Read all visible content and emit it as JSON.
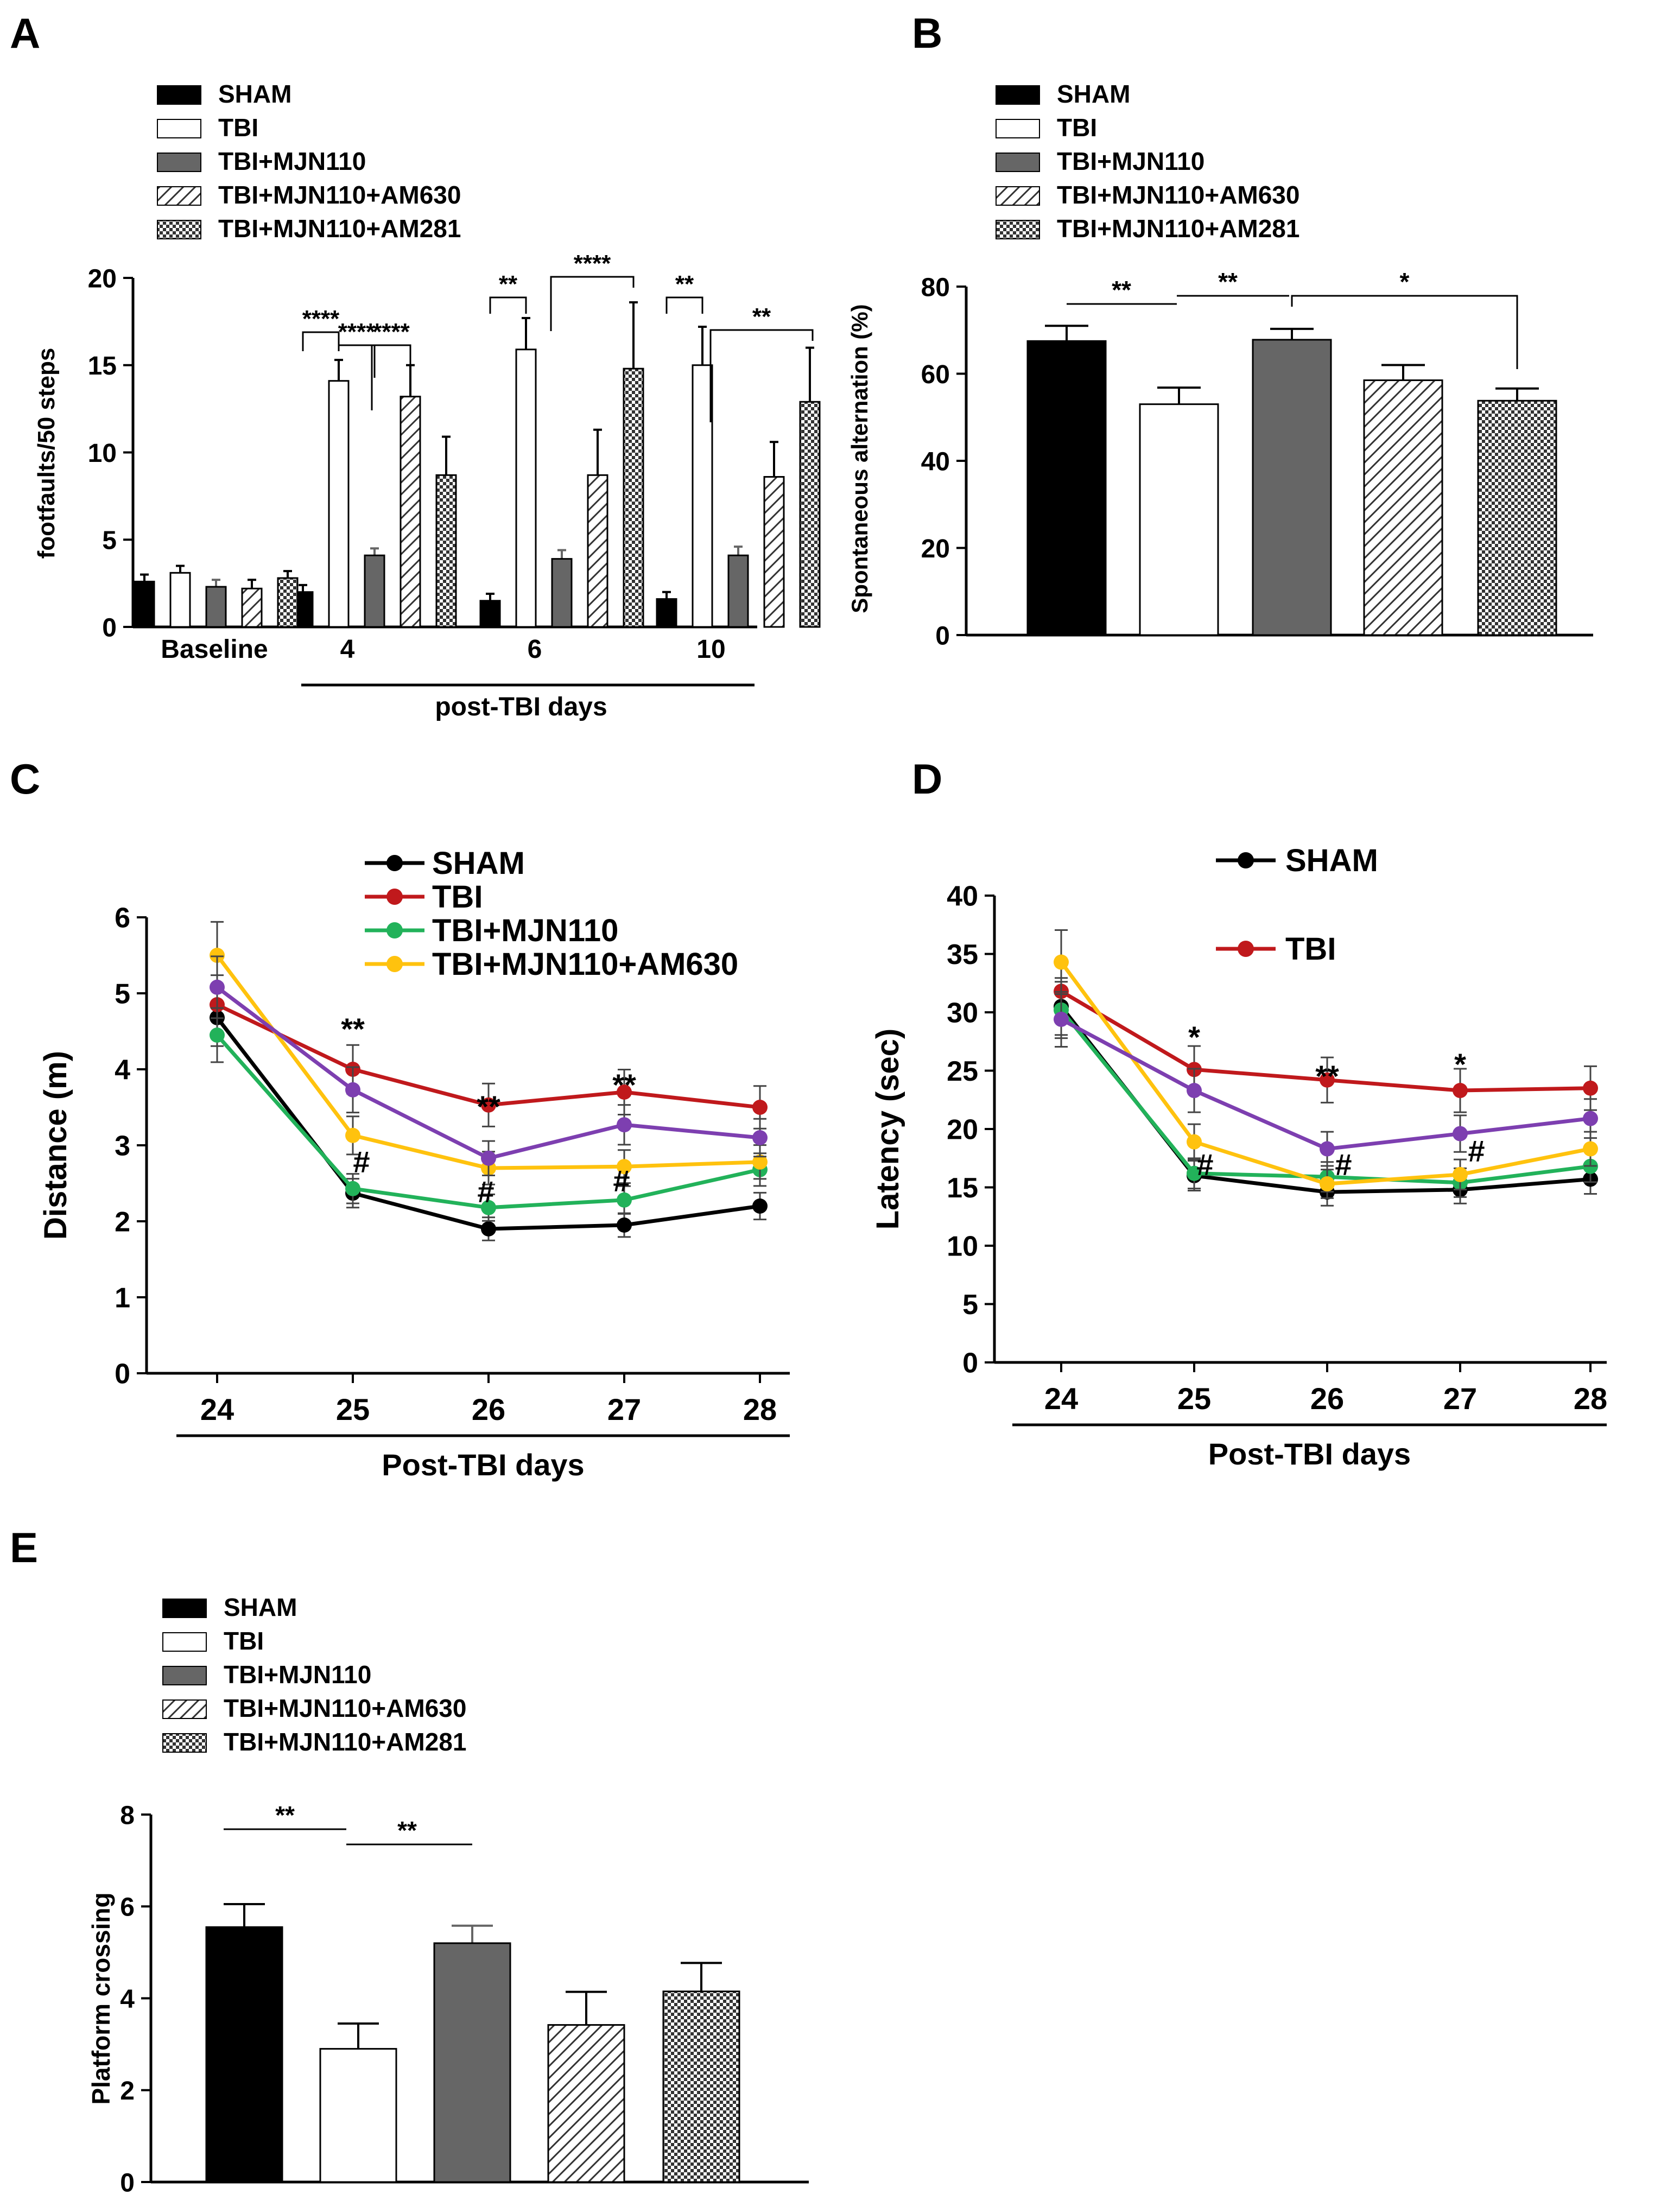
{
  "colors": {
    "sham": "#000000",
    "tbi": "#ffffff",
    "mjn": "#666666",
    "line_sham": "#000000",
    "line_tbi": "#c0191c",
    "line_mjn": "#22b25a",
    "line_am630": "#ffc20e",
    "line_purple": "#7d3fb0"
  },
  "chart_data": [
    {
      "panel": "A",
      "type": "bar",
      "title": "",
      "xlabel": "post-TBI days",
      "ylabel": "footfaults/50 steps",
      "ylim": [
        0,
        20
      ],
      "yticks": [
        "0",
        "5",
        "10",
        "15",
        "20"
      ],
      "categories": [
        "Baseline",
        "4",
        "6",
        "10"
      ],
      "legend": [
        "SHAM",
        "TBI",
        "TBI+MJN110",
        "TBI+MJN110+AM630",
        "TBI+MJN110+AM281"
      ],
      "series": [
        {
          "name": "SHAM",
          "values": [
            2.6,
            2.0,
            1.5,
            1.6
          ],
          "errors": [
            0.4,
            0.4,
            0.4,
            0.4
          ]
        },
        {
          "name": "TBI",
          "values": [
            3.1,
            14.1,
            15.9,
            15.0
          ],
          "errors": [
            0.4,
            1.2,
            1.8,
            2.2
          ]
        },
        {
          "name": "TBI+MJN110",
          "values": [
            2.3,
            4.1,
            3.9,
            4.1
          ],
          "errors": [
            0.4,
            0.4,
            0.5,
            0.5
          ]
        },
        {
          "name": "TBI+MJN110+AM630",
          "values": [
            2.2,
            13.2,
            8.7,
            8.6
          ],
          "errors": [
            0.5,
            1.8,
            2.6,
            2.0
          ]
        },
        {
          "name": "TBI+MJN110+AM281",
          "values": [
            2.8,
            8.7,
            14.8,
            12.9
          ],
          "errors": [
            0.4,
            2.2,
            3.8,
            3.1
          ]
        }
      ],
      "annotations": [
        "****",
        "****",
        "****",
        "**",
        "****",
        "**"
      ]
    },
    {
      "panel": "B",
      "type": "bar",
      "title": "",
      "xlabel": "",
      "ylabel": "Spontaneous alternation (%)",
      "ylim": [
        0,
        80
      ],
      "yticks": [
        "0",
        "20",
        "40",
        "60",
        "80"
      ],
      "categories": [
        "SHAM",
        "TBI",
        "TBI+MJN110",
        "TBI+MJN110+AM630",
        "TBI+MJN110+AM281"
      ],
      "legend": [
        "SHAM",
        "TBI",
        "TBI+MJN110",
        "TBI+MJN110+AM630",
        "TBI+MJN110+AM281"
      ],
      "values": [
        67.5,
        53.0,
        67.8,
        58.5,
        53.8
      ],
      "errors": [
        3.5,
        3.8,
        2.5,
        3.5,
        2.8
      ],
      "annotations": [
        "**",
        "**",
        "*"
      ]
    },
    {
      "panel": "C",
      "type": "line",
      "title": "",
      "xlabel": "Post-TBI days",
      "ylabel": "Distance (m)",
      "ylim": [
        0,
        6
      ],
      "yticks": [
        "0",
        "1",
        "2",
        "3",
        "4",
        "5",
        "6"
      ],
      "x": [
        "24",
        "25",
        "26",
        "27",
        "28"
      ],
      "legend": [
        "SHAM",
        "TBI",
        "TBI+MJN110",
        "TBI+MJN110+AM630"
      ],
      "series": [
        {
          "name": "SHAM",
          "values": [
            4.68,
            2.37,
            1.9,
            1.95,
            2.2
          ]
        },
        {
          "name": "TBI",
          "values": [
            4.85,
            4.0,
            3.53,
            3.7,
            3.5
          ]
        },
        {
          "name": "TBI+MJN110",
          "values": [
            4.45,
            2.43,
            2.18,
            2.28,
            2.68
          ]
        },
        {
          "name": "TBI+MJN110+AM630",
          "values": [
            5.5,
            3.13,
            2.7,
            2.72,
            2.78
          ]
        },
        {
          "name": "",
          "values": [
            5.08,
            3.73,
            2.83,
            3.27,
            3.1
          ]
        }
      ],
      "annotations": [
        "**",
        "**",
        "**",
        "#",
        "#",
        "#"
      ]
    },
    {
      "panel": "D",
      "type": "line",
      "title": "",
      "xlabel": "Post-TBI days",
      "ylabel": "Latency (sec)",
      "ylim": [
        0,
        40
      ],
      "yticks": [
        "0",
        "5",
        "10",
        "15",
        "20",
        "25",
        "30",
        "35",
        "40"
      ],
      "x": [
        "24",
        "25",
        "26",
        "27",
        "28"
      ],
      "legend": [
        "SHAM",
        "TBI"
      ],
      "series": [
        {
          "name": "SHAM",
          "values": [
            30.5,
            16.0,
            14.6,
            14.8,
            15.7
          ]
        },
        {
          "name": "TBI",
          "values": [
            31.8,
            25.1,
            24.2,
            23.3,
            23.5
          ]
        },
        {
          "name": "",
          "values": [
            30.2,
            16.2,
            15.9,
            15.4,
            16.8
          ]
        },
        {
          "name": "",
          "values": [
            34.3,
            18.9,
            15.3,
            16.1,
            18.3
          ]
        },
        {
          "name": "",
          "values": [
            29.4,
            23.3,
            18.3,
            19.6,
            20.9
          ]
        }
      ],
      "annotations": [
        "*",
        "**",
        "*",
        "#",
        "#",
        "#"
      ]
    },
    {
      "panel": "E",
      "type": "bar",
      "title": "",
      "xlabel": "",
      "ylabel": "Platform crossing",
      "ylim": [
        0,
        8
      ],
      "yticks": [
        "0",
        "2",
        "4",
        "6",
        "8"
      ],
      "categories": [
        "SHAM",
        "TBI",
        "TBI+MJN110",
        "TBI+MJN110+AM630",
        "TBI+MJN110+AM281"
      ],
      "legend": [
        "SHAM",
        "TBI",
        "TBI+MJN110",
        "TBI+MJN110+AM630",
        "TBI+MJN110+AM281"
      ],
      "values": [
        5.55,
        2.9,
        5.2,
        3.42,
        4.15
      ],
      "errors": [
        0.5,
        0.55,
        0.38,
        0.72,
        0.62
      ],
      "annotations": [
        "**",
        "**"
      ]
    }
  ]
}
